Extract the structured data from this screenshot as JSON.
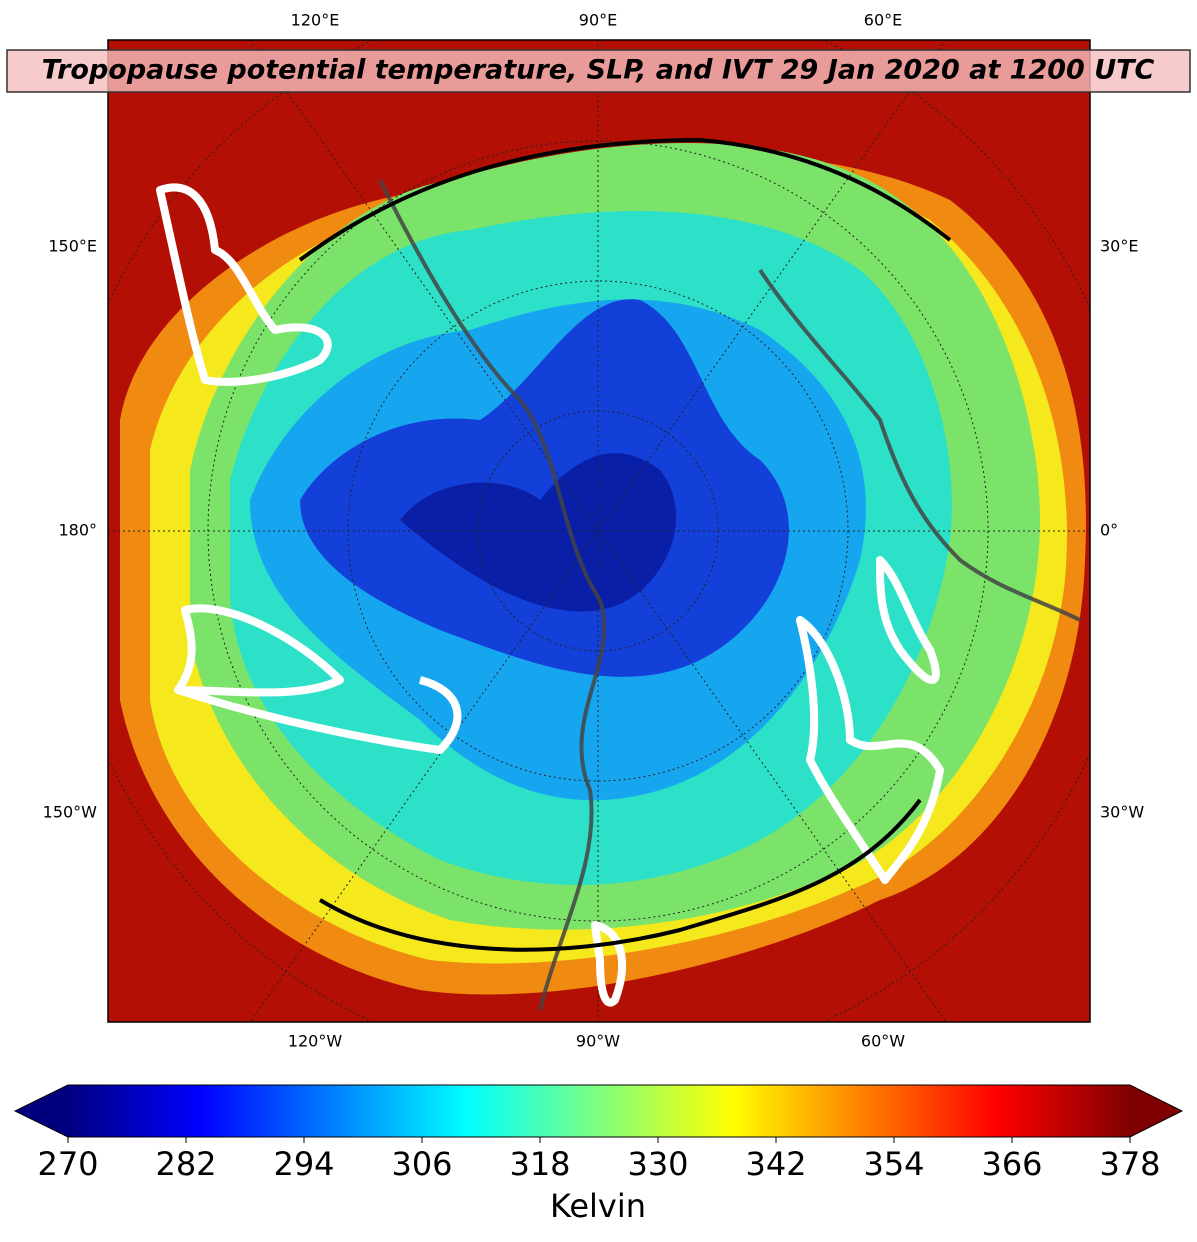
{
  "title": "Tropopause potential temperature, SLP, and IVT 29 Jan 2020 at 1200 UTC",
  "map": {
    "top_labels": [
      "120°E",
      "90°E",
      "60°E"
    ],
    "bottom_labels": [
      "120°W",
      "90°W",
      "60°W"
    ],
    "left_labels": [
      "150°E",
      "180°",
      "150°W"
    ],
    "right_labels": [
      "30°E",
      "0°",
      "30°W"
    ]
  },
  "colorbar": {
    "label": "Kelvin",
    "colormap": "jet",
    "range": [
      270,
      378
    ],
    "ticks": [
      270,
      282,
      294,
      306,
      318,
      330,
      342,
      354,
      366,
      378
    ],
    "extend": "both"
  }
}
